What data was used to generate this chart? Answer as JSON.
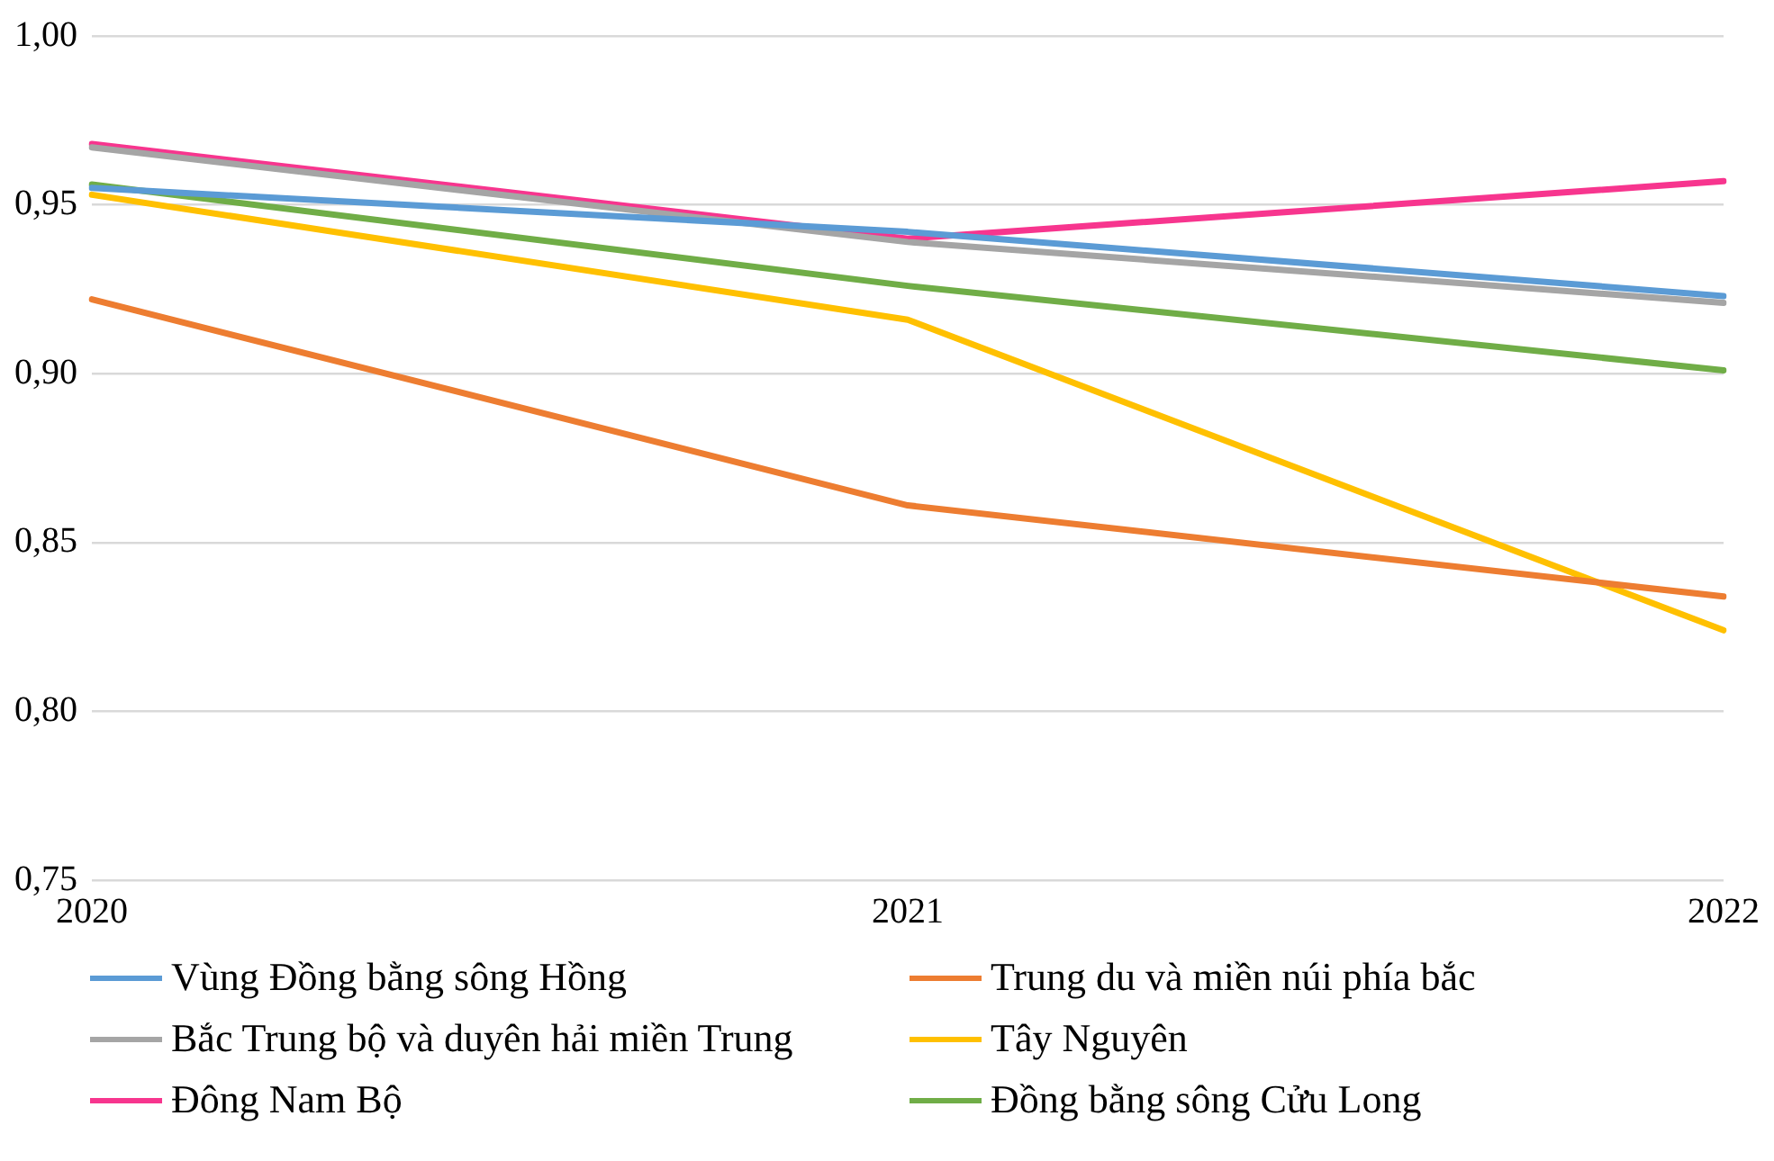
{
  "chart_data": {
    "type": "line",
    "categories": [
      "2020",
      "2021",
      "2022"
    ],
    "series": [
      {
        "name": "Vùng Đồng bằng sông Hồng",
        "color": "#5b9bd5",
        "values": [
          0.955,
          0.942,
          0.923
        ]
      },
      {
        "name": "Trung du và miền núi phía bắc",
        "color": "#ed7d31",
        "values": [
          0.922,
          0.861,
          0.834
        ]
      },
      {
        "name": "Bắc Trung bộ và duyên hải miền Trung",
        "color": "#a5a5a5",
        "values": [
          0.967,
          0.939,
          0.921
        ]
      },
      {
        "name": "Tây Nguyên",
        "color": "#ffc000",
        "values": [
          0.953,
          0.916,
          0.824
        ]
      },
      {
        "name": "Đông Nam Bộ",
        "color": "#f7358e",
        "values": [
          0.968,
          0.94,
          0.957
        ]
      },
      {
        "name": "Đồng bằng sông Cửu Long",
        "color": "#70ad47",
        "values": [
          0.956,
          0.926,
          0.901
        ]
      }
    ],
    "ylim": [
      0.75,
      1.0
    ],
    "yticks": [
      {
        "value": 0.75,
        "label": "0,75"
      },
      {
        "value": 0.8,
        "label": "0,80"
      },
      {
        "value": 0.85,
        "label": "0,85"
      },
      {
        "value": 0.9,
        "label": "0,90"
      },
      {
        "value": 0.95,
        "label": "0,95"
      },
      {
        "value": 1.0,
        "label": "1,00"
      }
    ],
    "grid": "y",
    "legend": "bottom",
    "marker": "none",
    "line_style": "solid"
  }
}
